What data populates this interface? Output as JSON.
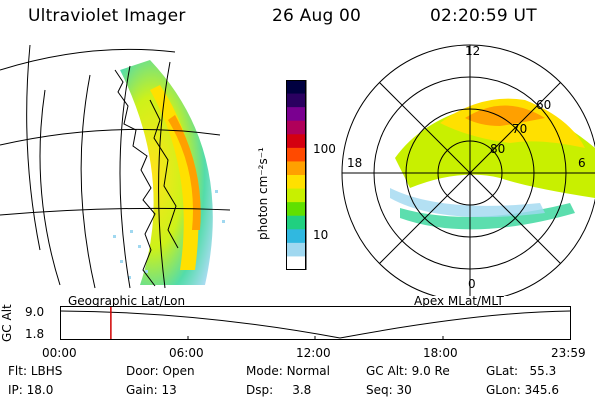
{
  "header": {
    "instrument": "Ultraviolet Imager",
    "date": "26 Aug 00",
    "time": "02:20:59 UT"
  },
  "colorbar": {
    "unit_label": "photon cm⁻²s⁻¹",
    "tick_100": "100",
    "tick_10": "10",
    "colors": [
      "#000040",
      "#2a0060",
      "#7a0090",
      "#b0005a",
      "#d40010",
      "#ff4a00",
      "#ffa000",
      "#ffe000",
      "#c8f000",
      "#60e000",
      "#20d080",
      "#30b8e0",
      "#a0d8f0",
      "#ffffff"
    ]
  },
  "geo_map": {
    "label": "Geographic Lat/Lon"
  },
  "polar_map": {
    "label": "Apex MLat/MLT",
    "mlt": {
      "top": "12",
      "bottom": "0",
      "left": "18",
      "right": "6"
    },
    "lat": {
      "r60": "60",
      "r70": "70",
      "r80": "80"
    }
  },
  "altitude_strip": {
    "axis_label": "GC Alt",
    "y_top": "9.0",
    "y_bottom": "1.8",
    "time_ticks": [
      "00:00",
      "06:00",
      "12:00",
      "18:00",
      "23:59"
    ],
    "current_time_fraction": 0.098
  },
  "info": {
    "filter_label": "Flt:",
    "filter_value": "LBHS",
    "ip_label": "IP:",
    "ip_value": "18.0",
    "door_label": "Door:",
    "door_value": "Open",
    "gain_label": "Gain:",
    "gain_value": "13",
    "mode_label": "Mode:",
    "mode_value": "Normal",
    "dsp_label": "Dsp:",
    "dsp_value": "3.8",
    "gcalt_label": "GC Alt:",
    "gcalt_value": "9.0 Re",
    "seq_label": "Seq:",
    "seq_value": "30",
    "glat_label": "GLat:",
    "glat_value": "55.3",
    "glon_label": "GLon:",
    "glon_value": "345.6"
  }
}
